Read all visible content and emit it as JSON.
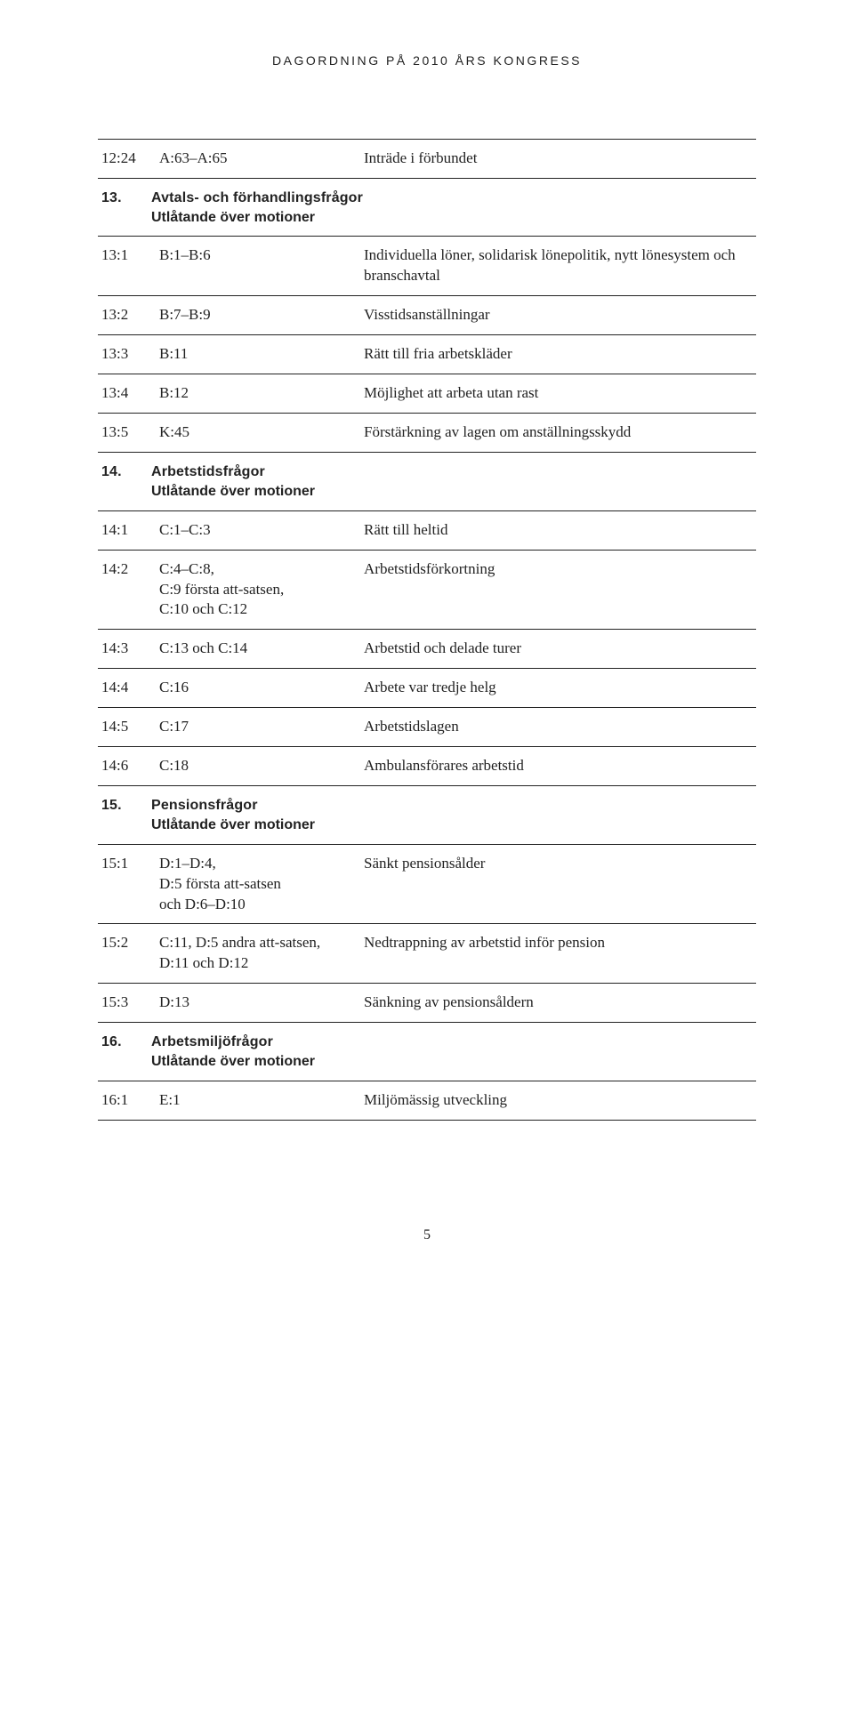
{
  "running_head": "DAGORDNING PÅ 2010 ÅRS KONGRESS",
  "page_number": "5",
  "rows": [
    {
      "type": "entry",
      "code": "12:24",
      "ref": "A:63–A:65",
      "desc": "Inträde i förbundet"
    },
    {
      "type": "section",
      "num": "13.",
      "title": "Avtals- och förhandlingsfrågor",
      "sub": "Utlåtande över motioner"
    },
    {
      "type": "entry",
      "code": "13:1",
      "ref": "B:1–B:6",
      "desc": "Individuella löner, solidarisk lönepolitik, nytt lönesystem och branschavtal"
    },
    {
      "type": "entry",
      "code": "13:2",
      "ref": "B:7–B:9",
      "desc": "Visstidsanställningar"
    },
    {
      "type": "entry",
      "code": "13:3",
      "ref": "B:11",
      "desc": "Rätt till fria arbetskläder"
    },
    {
      "type": "entry",
      "code": "13:4",
      "ref": "B:12",
      "desc": "Möjlighet att arbeta utan rast"
    },
    {
      "type": "entry",
      "code": "13:5",
      "ref": "K:45",
      "desc": "Förstärkning av lagen om anställningsskydd"
    },
    {
      "type": "section",
      "num": "14.",
      "title": "Arbetstidsfrågor",
      "sub": "Utlåtande över motioner"
    },
    {
      "type": "entry",
      "code": "14:1",
      "ref": "C:1–C:3",
      "desc": "Rätt till heltid"
    },
    {
      "type": "entry",
      "code": "14:2",
      "ref": "C:4–C:8,\nC:9 första att-satsen,\nC:10 och C:12",
      "desc": "Arbetstidsförkortning"
    },
    {
      "type": "entry",
      "code": "14:3",
      "ref": "C:13 och C:14",
      "desc": "Arbetstid och delade turer"
    },
    {
      "type": "entry",
      "code": "14:4",
      "ref": "C:16",
      "desc": "Arbete var tredje helg"
    },
    {
      "type": "entry",
      "code": "14:5",
      "ref": "C:17",
      "desc": "Arbetstidslagen"
    },
    {
      "type": "entry",
      "code": "14:6",
      "ref": "C:18",
      "desc": "Ambulansförares arbetstid"
    },
    {
      "type": "section",
      "num": "15.",
      "title": "Pensionsfrågor",
      "sub": "Utlåtande över motioner"
    },
    {
      "type": "entry",
      "code": "15:1",
      "ref": "D:1–D:4,\nD:5 första att-satsen\noch D:6–D:10",
      "desc": "Sänkt pensionsålder"
    },
    {
      "type": "entry",
      "code": "15:2",
      "ref": "C:11, D:5 andra att-satsen,\nD:11 och D:12",
      "desc": "Nedtrappning av arbetstid inför pension"
    },
    {
      "type": "entry",
      "code": "15:3",
      "ref": "D:13",
      "desc": "Sänkning av pensionsåldern"
    },
    {
      "type": "section",
      "num": "16.",
      "title": "Arbetsmiljöfrågor",
      "sub": "Utlåtande över motioner"
    },
    {
      "type": "entry",
      "code": "16:1",
      "ref": "E:1",
      "desc": "Miljömässig utveckling"
    }
  ]
}
